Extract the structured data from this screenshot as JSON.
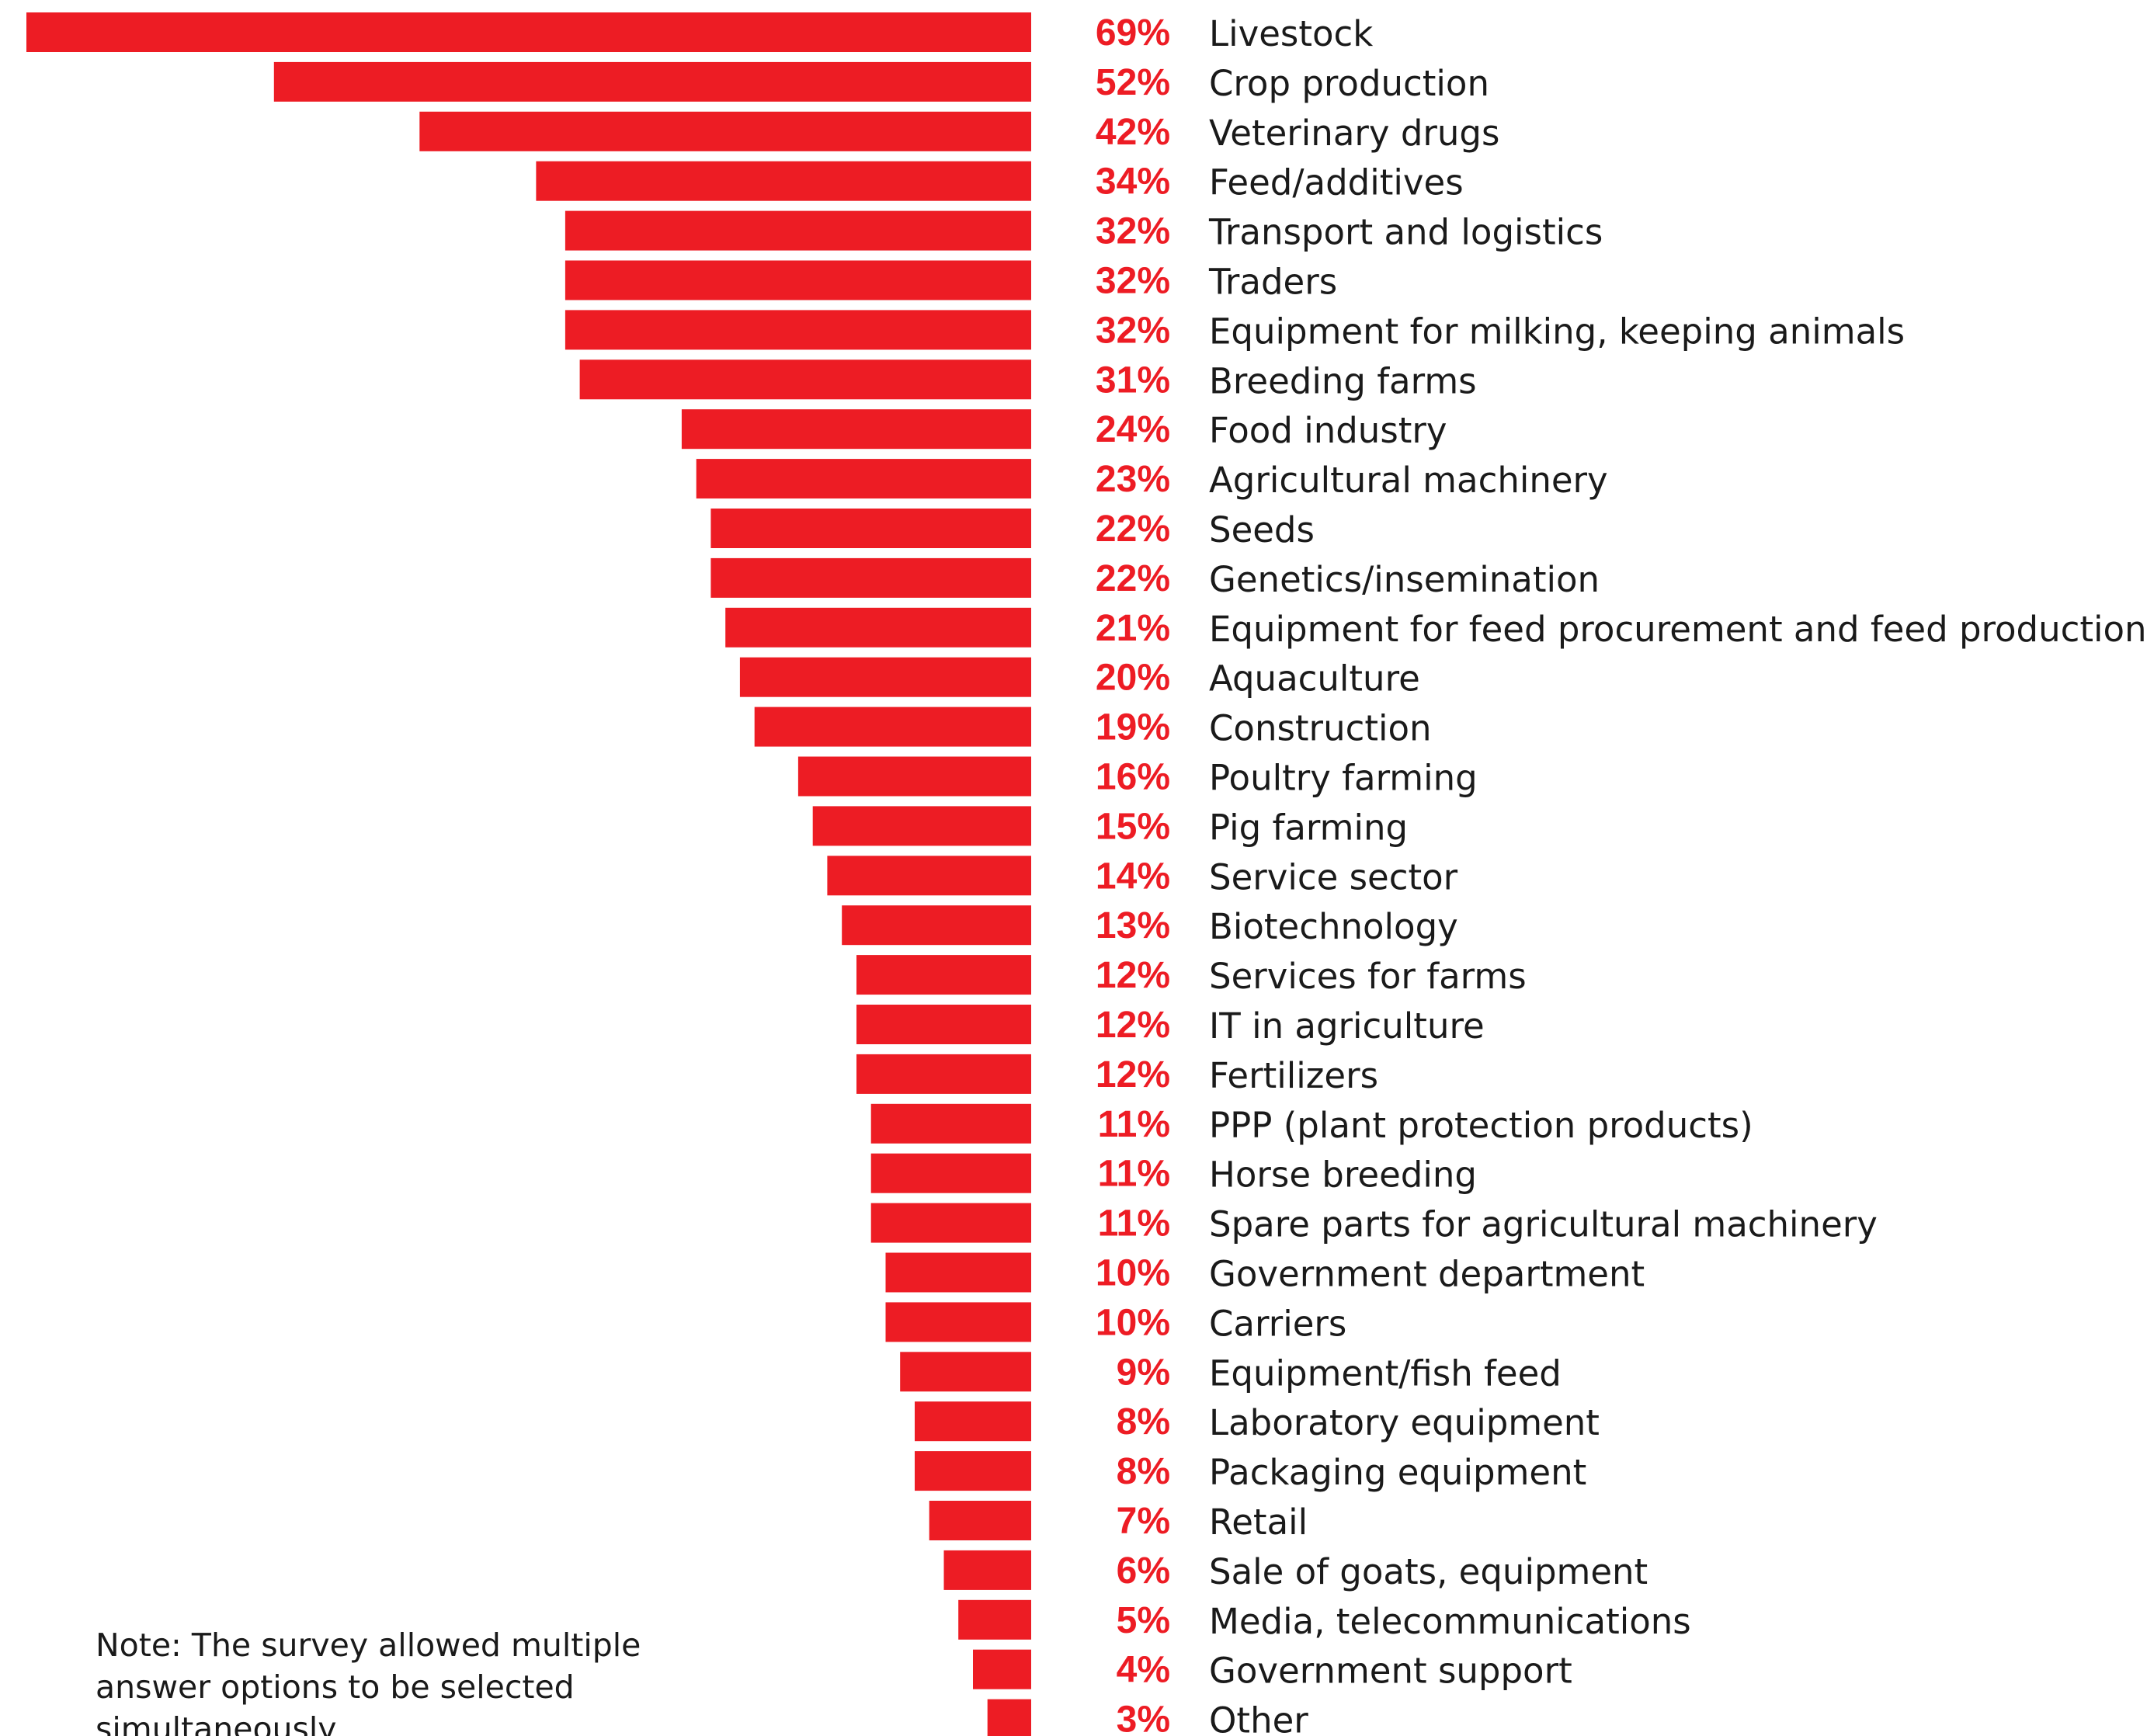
{
  "chart_data": {
    "type": "bar",
    "orientation": "horizontal",
    "title": "",
    "xlabel": "",
    "ylabel": "",
    "unit": "%",
    "xlim": [
      0,
      69
    ],
    "grid": false,
    "bar_color": "#ed1c24",
    "label_color": "#ed1c24",
    "categories": [
      "Livestock",
      "Crop production",
      "Veterinary drugs",
      "Feed/additives",
      "Transport and logistics",
      "Traders",
      "Equipment for milking, keeping animals",
      "Breeding farms",
      "Food industry",
      "Agricultural machinery",
      "Seeds",
      "Genetics/insemination",
      "Equipment for feed procurement and feed production",
      "Aquaculture",
      "Construction",
      "Poultry farming",
      "Pig farming",
      "Service sector",
      "Biotechnology",
      "Services for farms",
      "IT in agriculture",
      "Fertilizers",
      "PPP (plant protection products)",
      "Horse breeding",
      "Spare parts for agricultural machinery",
      "Government department",
      "Carriers",
      "Equipment/fish feed",
      "Laboratory equipment",
      "Packaging equipment",
      "Retail",
      "Sale of goats, equipment",
      "Media, telecommunications",
      "Government support",
      "Other"
    ],
    "values": [
      69,
      52,
      42,
      34,
      32,
      32,
      32,
      31,
      24,
      23,
      22,
      22,
      21,
      20,
      19,
      16,
      15,
      14,
      13,
      12,
      12,
      12,
      11,
      11,
      11,
      10,
      10,
      9,
      8,
      8,
      7,
      6,
      5,
      4,
      3
    ],
    "value_labels": [
      "69%",
      "52%",
      "42%",
      "34%",
      "32%",
      "32%",
      "32%",
      "31%",
      "24%",
      "23%",
      "22%",
      "22%",
      "21%",
      "20%",
      "19%",
      "16%",
      "15%",
      "14%",
      "13%",
      "12%",
      "12%",
      "12%",
      "11%",
      "11%",
      "11%",
      "10%",
      "10%",
      "9%",
      "8%",
      "8%",
      "7%",
      "6%",
      "5%",
      "4%",
      "3%"
    ]
  },
  "note": "Note: The survey allowed multiple answer options to be selected simultaneously"
}
